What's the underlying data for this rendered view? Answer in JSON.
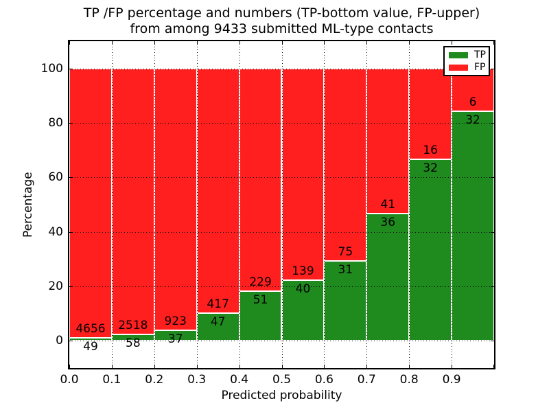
{
  "title": {
    "line1": "TP /FP percentage and numbers (TP-bottom value, FP-upper)",
    "line2": "from among 9433 submitted ML-type contacts"
  },
  "axes": {
    "xlabel": "Predicted probability",
    "ylabel": "Percentage",
    "x_tick_labels": [
      "0.0",
      "0.1",
      "0.2",
      "0.3",
      "0.4",
      "0.5",
      "0.6",
      "0.7",
      "0.8",
      "0.9"
    ],
    "y_tick_values": [
      0,
      20,
      40,
      60,
      80,
      100
    ],
    "xlim": [
      0.0,
      1.0
    ],
    "ylim": [
      -10,
      110
    ],
    "grid": "dotted black on both axes"
  },
  "legend": {
    "position": "upper right",
    "items": [
      {
        "label": "TP",
        "color": "#1f8b1f"
      },
      {
        "label": "FP",
        "color": "#ff1f1f"
      }
    ]
  },
  "chart_data": {
    "type": "bar",
    "mode": "stacked-percentage",
    "title": "TP /FP percentage and numbers (TP-bottom value, FP-upper) from among 9433 submitted ML-type contacts",
    "xlabel": "Predicted probability",
    "ylabel": "Percentage",
    "total_contacts": 9433,
    "bin_start": [
      0.0,
      0.1,
      0.2,
      0.3,
      0.4,
      0.5,
      0.6,
      0.7,
      0.8,
      0.9
    ],
    "bin_width": 0.1,
    "series": [
      {
        "name": "TP",
        "color": "#1f8b1f",
        "counts": [
          49,
          58,
          37,
          47,
          51,
          40,
          31,
          36,
          32,
          32
        ]
      },
      {
        "name": "FP",
        "color": "#ff1f1f",
        "counts": [
          4656,
          2518,
          923,
          417,
          229,
          139,
          75,
          41,
          16,
          6
        ]
      }
    ],
    "tp_percent_of_bin": [
      1.04,
      2.25,
      3.85,
      10.13,
      18.21,
      22.35,
      29.25,
      46.75,
      66.67,
      84.21
    ],
    "bar_total_percent": 100,
    "ylim": [
      -10,
      110
    ],
    "y_ticks": [
      0,
      20,
      40,
      60,
      80,
      100
    ],
    "annotation_note": "TP count printed just below green/red boundary, FP count printed just above it"
  }
}
